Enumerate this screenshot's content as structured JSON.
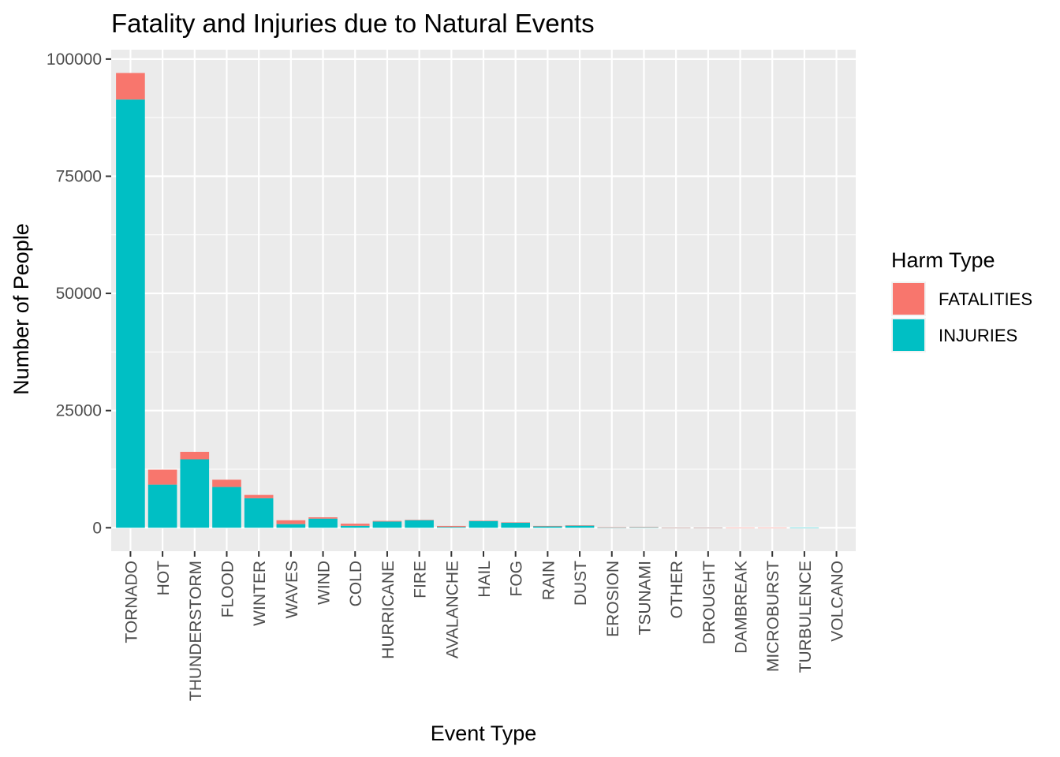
{
  "chart_data": {
    "type": "bar",
    "stacked": true,
    "title": "Fatality and Injuries due to Natural Events",
    "xlabel": "Event Type",
    "ylabel": "Number of People",
    "ylim": [
      -5000,
      102000
    ],
    "yticks": [
      0,
      25000,
      50000,
      75000,
      100000
    ],
    "grid": true,
    "legend": {
      "title": "Harm Type",
      "position": "right"
    },
    "categories": [
      "TORNADO",
      "HOT",
      "THUNDERSTORM",
      "FLOOD",
      "WINTER",
      "WAVES",
      "WIND",
      "COLD",
      "HURRICANE",
      "FIRE",
      "AVALANCHE",
      "HAIL",
      "FOG",
      "RAIN",
      "DUST",
      "EROSION",
      "TSUNAMI",
      "OTHER",
      "DROUGHT",
      "DAMBREAK",
      "MICROBURST",
      "TURBULENCE",
      "VOLCANO"
    ],
    "series": [
      {
        "name": "FATALITIES",
        "color": "#F8766D",
        "values": [
          5658,
          3200,
          1600,
          1550,
          700,
          820,
          280,
          450,
          135,
          90,
          225,
          45,
          85,
          110,
          25,
          95,
          33,
          10,
          6,
          2,
          4,
          0,
          0
        ]
      },
      {
        "name": "INJURIES",
        "color": "#00BFC4",
        "values": [
          91364,
          9200,
          14600,
          8700,
          6300,
          780,
          1950,
          420,
          1330,
          1610,
          170,
          1460,
          1080,
          290,
          480,
          10,
          130,
          20,
          20,
          0,
          0,
          2,
          0
        ]
      }
    ]
  }
}
